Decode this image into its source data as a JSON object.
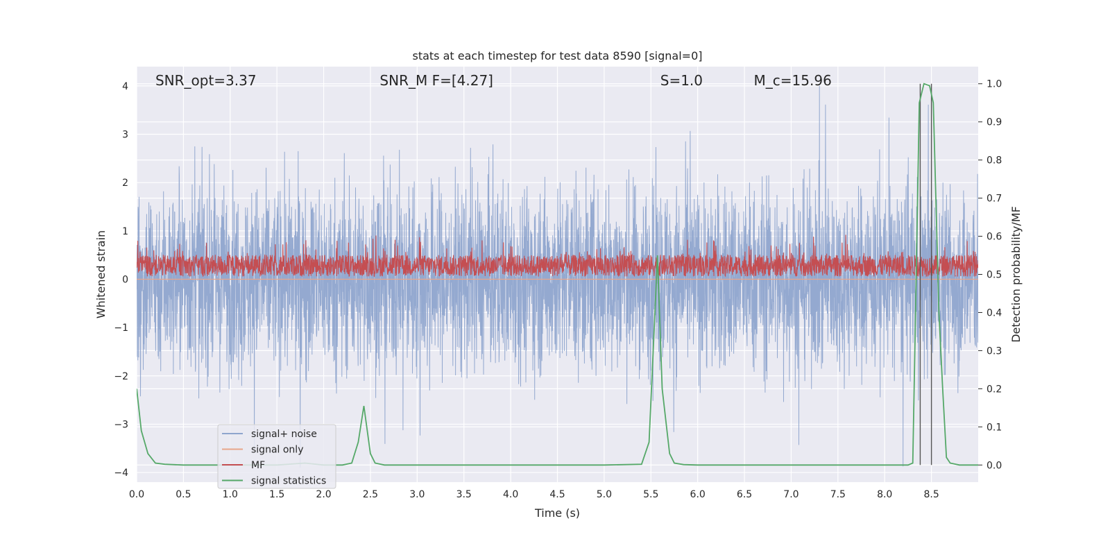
{
  "chart_data": {
    "type": "line",
    "title": "stats at each timestep for test data 8590 [signal=0]",
    "xlabel": "Time (s)",
    "ylabel": "Whitened strain",
    "y2label": "Detection probability/MF",
    "xlim": [
      0.0,
      9.0
    ],
    "ylim": [
      -4.2,
      4.4
    ],
    "y2lim": [
      -0.045,
      1.045
    ],
    "xticks": [
      "0.0",
      "0.5",
      "1.0",
      "1.5",
      "2.0",
      "2.5",
      "3.0",
      "3.5",
      "4.0",
      "4.5",
      "5.0",
      "5.5",
      "6.0",
      "6.5",
      "7.0",
      "7.5",
      "8.0",
      "8.5"
    ],
    "xtick_values": [
      0.0,
      0.5,
      1.0,
      1.5,
      2.0,
      2.5,
      3.0,
      3.5,
      4.0,
      4.5,
      5.0,
      5.5,
      6.0,
      6.5,
      7.0,
      7.5,
      8.0,
      8.5
    ],
    "yticks": [
      "−4",
      "−3",
      "−2",
      "−1",
      "0",
      "1",
      "2",
      "3",
      "4"
    ],
    "ytick_values": [
      -4,
      -3,
      -2,
      -1,
      0,
      1,
      2,
      3,
      4
    ],
    "y2ticks": [
      "0.0",
      "0.1",
      "0.2",
      "0.3",
      "0.4",
      "0.5",
      "0.6",
      "0.7",
      "0.8",
      "0.9",
      "1.0"
    ],
    "y2tick_values": [
      0.0,
      0.1,
      0.2,
      0.3,
      0.4,
      0.5,
      0.6,
      0.7,
      0.8,
      0.9,
      1.0
    ],
    "grid": true,
    "legend_position": "lower-left",
    "annotations": [
      {
        "label": "SNR_opt=3.37",
        "x": 0.2
      },
      {
        "label": "SNR_M F=[4.27]",
        "x": 2.6
      },
      {
        "label": "S=1.0",
        "x": 5.6
      },
      {
        "label": "M_c=15.96",
        "x": 6.6
      }
    ],
    "annotation_y": 4.0,
    "vertical_lines": [
      8.38,
      8.5
    ],
    "series": [
      {
        "name": "signal+ noise",
        "color": "#8fa5cd",
        "axis": "left",
        "description_values": {
          "typical_band": [
            -1.7,
            1.7
          ],
          "max": 4.0,
          "min": -3.7
        }
      },
      {
        "name": "signal only",
        "color": "#e8a58a",
        "axis": "left",
        "constant": 0.0
      },
      {
        "name": "MF",
        "color": "#c44e52",
        "axis": "left",
        "description_values": {
          "typical_band": [
            0.0,
            0.75
          ],
          "max": 1.0
        }
      },
      {
        "name": "signal statistics",
        "color": "#55a868",
        "axis": "right",
        "x": [
          0.0,
          0.05,
          0.12,
          0.2,
          0.3,
          0.5,
          1.0,
          1.5,
          1.8,
          2.0,
          2.2,
          2.3,
          2.37,
          2.43,
          2.5,
          2.55,
          2.65,
          3.0,
          4.0,
          5.0,
          5.4,
          5.48,
          5.53,
          5.57,
          5.62,
          5.7,
          5.75,
          5.85,
          6.0,
          7.0,
          8.0,
          8.25,
          8.3,
          8.33,
          8.37,
          8.42,
          8.48,
          8.52,
          8.58,
          8.62,
          8.66,
          8.7,
          8.8,
          9.0
        ],
        "y": [
          0.2,
          0.09,
          0.03,
          0.005,
          0.002,
          0.0,
          0.0,
          0.0,
          0.005,
          0.0,
          0.0,
          0.005,
          0.06,
          0.155,
          0.03,
          0.005,
          0.0,
          0.0,
          0.0,
          0.0,
          0.002,
          0.06,
          0.33,
          0.55,
          0.2,
          0.03,
          0.005,
          0.001,
          0.0,
          0.0,
          0.0,
          0.0,
          0.005,
          0.4,
          0.95,
          1.0,
          0.995,
          0.95,
          0.4,
          0.2,
          0.02,
          0.005,
          0.0,
          0.0
        ]
      }
    ]
  }
}
